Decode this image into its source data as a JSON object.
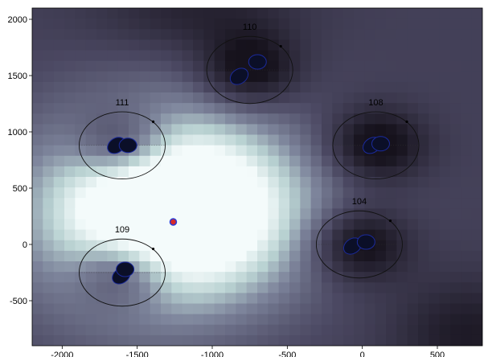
{
  "chart_data": {
    "type": "heatmap",
    "title": "",
    "xlabel": "",
    "ylabel": "",
    "xlim": [
      -2200,
      800
    ],
    "ylim": [
      -900,
      2100
    ],
    "xticks": [
      -2000,
      -1500,
      -1000,
      -500,
      0,
      500
    ],
    "yticks": [
      -500,
      0,
      500,
      1000,
      1500,
      2000
    ],
    "grid": false,
    "colormap": "bone",
    "colors": {
      "high": "#f4fbfb",
      "low": "#16121c",
      "mid": "#6f6c86",
      "marker_fill": "#d62a2a",
      "marker_edge": "#2a3ad6",
      "ellipse_fill": "#0b0f28",
      "ellipse_edge": "#1b2a9c"
    },
    "source": {
      "x": -1260,
      "y": 200
    },
    "stations": [
      {
        "id": "110",
        "x": -750,
        "y": 1550
      },
      {
        "id": "111",
        "x": -1600,
        "y": 880
      },
      {
        "id": "108",
        "x": 90,
        "y": 880
      },
      {
        "id": "104",
        "x": -20,
        "y": 0
      },
      {
        "id": "109",
        "x": -1600,
        "y": -250
      }
    ]
  }
}
